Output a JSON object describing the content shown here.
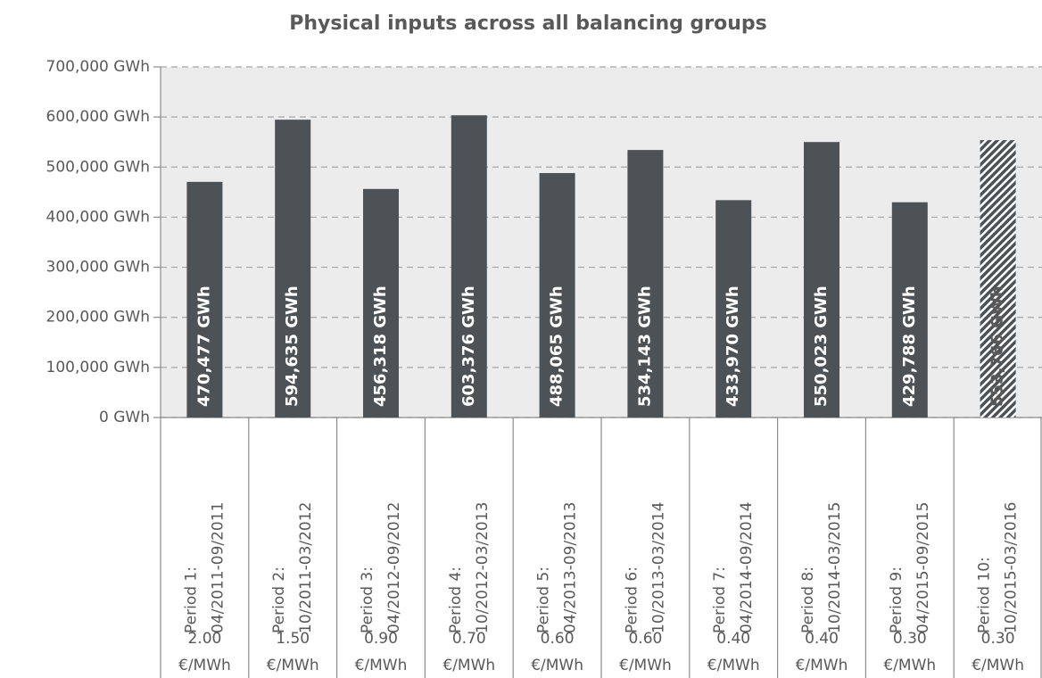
{
  "chart_data": {
    "type": "bar",
    "title": "Physical inputs across all balancing groups",
    "categories": [
      [
        "Period 1:",
        "04/2011-09/2011"
      ],
      [
        "Period 2:",
        "10/2011-03/2012"
      ],
      [
        "Period 3:",
        "04/2012-09/2012"
      ],
      [
        "Period 4:",
        "10/2012-03/2013"
      ],
      [
        "Period 5:",
        "04/2013-09/2013"
      ],
      [
        "Period 6:",
        "10/2013-03/2014"
      ],
      [
        "Period 7:",
        "04/2014-09/2014"
      ],
      [
        "Period 8:",
        "10/2014-03/2015"
      ],
      [
        "Period 9:",
        "04/2015-09/2015"
      ],
      [
        "Period 10:",
        "10/2015-03/2016"
      ]
    ],
    "fees": [
      [
        "2.00",
        "€/MWh"
      ],
      [
        "1.50",
        "€/MWh"
      ],
      [
        "0.90",
        "€/MWh"
      ],
      [
        "0.70",
        "€/MWh"
      ],
      [
        "0.60",
        "€/MWh"
      ],
      [
        "0.60",
        "€/MWh"
      ],
      [
        "0.40",
        "€/MWh"
      ],
      [
        "0.40",
        "€/MWh"
      ],
      [
        "0.30",
        "€/MWh"
      ],
      [
        "0.30",
        "€/MWh"
      ]
    ],
    "values": [
      470477,
      594635,
      456318,
      603376,
      488065,
      534143,
      433970,
      550023,
      429788,
      553766
    ],
    "value_labels": [
      "470,477 GWh",
      "594,635 GWh",
      "456,318 GWh",
      "603,376 GWh",
      "488,065 GWh",
      "534,143 GWh",
      "433,970 GWh",
      "550,023 GWh",
      "429,788 GWh",
      "553,766 GWh"
    ],
    "hatched": [
      false,
      false,
      false,
      false,
      false,
      false,
      false,
      false,
      false,
      true
    ],
    "color": "#4d5257",
    "ylim": [
      0,
      700000
    ],
    "yticks": [
      {
        "value": 0,
        "label": "0 GWh"
      },
      {
        "value": 100000,
        "label": "100,000 GWh"
      },
      {
        "value": 200000,
        "label": "200,000 GWh"
      },
      {
        "value": 300000,
        "label": "300,000 GWh"
      },
      {
        "value": 400000,
        "label": "400,000 GWh"
      },
      {
        "value": 500000,
        "label": "500,000 GWh"
      },
      {
        "value": 600000,
        "label": "600,000 GWh"
      },
      {
        "value": 700000,
        "label": "700,000 GWh"
      }
    ],
    "grid": true
  }
}
